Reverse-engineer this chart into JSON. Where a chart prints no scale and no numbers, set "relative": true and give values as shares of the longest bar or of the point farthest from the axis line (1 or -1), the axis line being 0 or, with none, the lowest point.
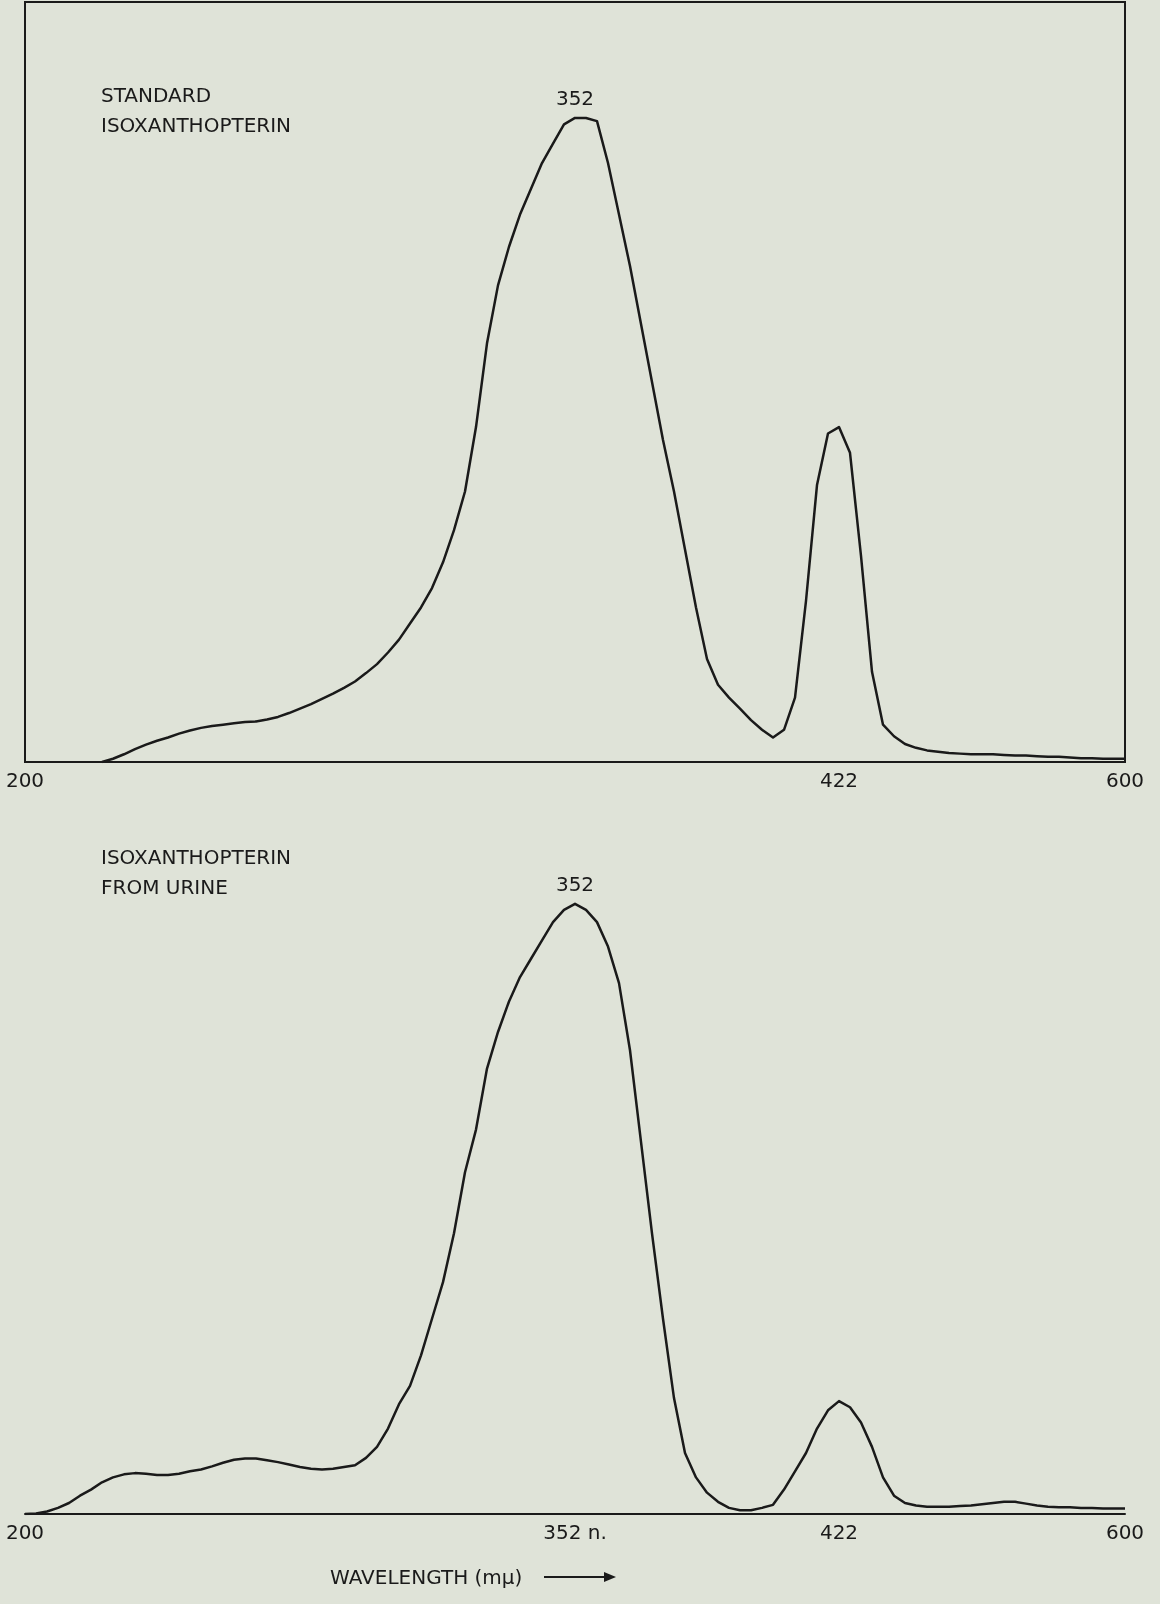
{
  "chart_data": [
    {
      "type": "line",
      "title": "STANDARD\nISOXANTHOPTERIN",
      "relative": true,
      "marker": "none",
      "color": "#1a1a1a",
      "annotations": [
        "352"
      ],
      "categories": [
        "200",
        null,
        null,
        null,
        null,
        null,
        null,
        null,
        null,
        null,
        null,
        null,
        null,
        null,
        null,
        null,
        null,
        null,
        null,
        null,
        null,
        null,
        null,
        null,
        null,
        null,
        null,
        null,
        null,
        null,
        null,
        null,
        null,
        null,
        null,
        null,
        null,
        null,
        null,
        null,
        null,
        null,
        null,
        null,
        null,
        null,
        null,
        null,
        null,
        null,
        null,
        null,
        null,
        null,
        null,
        null,
        null,
        null,
        null,
        null,
        null,
        null,
        null,
        null,
        null,
        null,
        null,
        null,
        null,
        null,
        null,
        null,
        null,
        null,
        "422",
        null,
        null,
        null,
        null,
        null,
        null,
        null,
        null,
        null,
        null,
        null,
        null,
        null,
        null,
        null,
        null,
        null,
        null,
        null,
        null,
        null,
        null,
        null,
        null,
        null,
        "600"
      ],
      "values": [
        null,
        null,
        null,
        null,
        null,
        null,
        null,
        0,
        0.005,
        0.012,
        0.02,
        0.027,
        0.033,
        0.038,
        0.044,
        0.049,
        0.053,
        0.056,
        0.058,
        0.06,
        0.062,
        0.063,
        0.066,
        0.07,
        0.076,
        0.083,
        0.09,
        0.098,
        0.106,
        0.115,
        0.125,
        0.138,
        0.152,
        0.17,
        0.19,
        0.215,
        0.24,
        0.27,
        0.31,
        0.36,
        0.42,
        0.52,
        0.65,
        0.74,
        0.8,
        0.85,
        0.89,
        0.93,
        0.96,
        0.99,
        1,
        1,
        0.995,
        0.93,
        0.85,
        0.77,
        0.68,
        0.59,
        0.5,
        0.42,
        0.33,
        0.24,
        0.16,
        0.12,
        0.1,
        0.083,
        0.065,
        0.05,
        0.038,
        0.05,
        0.1,
        0.25,
        0.43,
        0.51,
        0.52,
        0.48,
        0.32,
        0.14,
        0.058,
        0.04,
        0.028,
        0.022,
        0.018,
        0.016,
        0.014,
        0.013,
        0.012,
        0.012,
        0.012,
        0.011,
        0.01,
        0.01,
        0.009,
        0.008,
        0.008,
        0.007,
        0.006,
        0.006,
        0.005,
        0.005,
        0.005
      ]
    },
    {
      "type": "line",
      "title": "ISOXANTHOPTERIN\nFROM URINE",
      "xlabel": "WAVELENGTH (mμ)",
      "relative": true,
      "marker": "none",
      "color": "#1a1a1a",
      "annotations": [
        {
          "text": "352",
          "x": "352 n.",
          "y": 1
        }
      ],
      "categories": [
        "200",
        null,
        null,
        null,
        null,
        null,
        null,
        null,
        null,
        null,
        null,
        null,
        null,
        null,
        null,
        null,
        null,
        null,
        null,
        null,
        null,
        null,
        null,
        null,
        null,
        null,
        null,
        null,
        null,
        null,
        null,
        null,
        null,
        null,
        null,
        null,
        null,
        null,
        null,
        null,
        null,
        null,
        null,
        null,
        null,
        null,
        null,
        null,
        null,
        null,
        "352 n.",
        null,
        null,
        null,
        null,
        null,
        null,
        null,
        null,
        null,
        null,
        null,
        null,
        null,
        null,
        null,
        null,
        null,
        null,
        null,
        null,
        null,
        null,
        null,
        "422",
        null,
        null,
        null,
        null,
        null,
        null,
        null,
        null,
        null,
        null,
        null,
        null,
        null,
        null,
        null,
        null,
        null,
        null,
        null,
        null,
        null,
        null,
        null,
        null,
        null,
        "600"
      ],
      "values": [
        0,
        0.001,
        0.004,
        0.01,
        0.018,
        0.03,
        0.04,
        0.052,
        0.06,
        0.065,
        0.067,
        0.066,
        0.064,
        0.064,
        0.066,
        0.07,
        0.073,
        0.078,
        0.084,
        0.089,
        0.091,
        0.091,
        0.088,
        0.085,
        0.081,
        0.077,
        0.074,
        0.073,
        0.074,
        0.077,
        0.08,
        0.092,
        0.11,
        0.14,
        0.18,
        0.21,
        0.26,
        0.32,
        0.38,
        0.46,
        0.56,
        0.63,
        0.73,
        0.79,
        0.84,
        0.88,
        0.91,
        0.94,
        0.97,
        0.99,
        1,
        0.99,
        0.97,
        0.93,
        0.87,
        0.76,
        0.61,
        0.46,
        0.32,
        0.19,
        0.1,
        0.06,
        0.035,
        0.02,
        0.01,
        0.006,
        0.006,
        0.01,
        0.015,
        0.04,
        0.07,
        0.1,
        0.14,
        0.17,
        0.185,
        0.175,
        0.15,
        0.11,
        0.06,
        0.03,
        0.018,
        0.014,
        0.012,
        0.012,
        0.012,
        0.013,
        0.014,
        0.016,
        0.018,
        0.02,
        0.02,
        0.017,
        0.014,
        0.012,
        0.011,
        0.011,
        0.01,
        0.01,
        0.009,
        0.009,
        0.009
      ]
    }
  ]
}
